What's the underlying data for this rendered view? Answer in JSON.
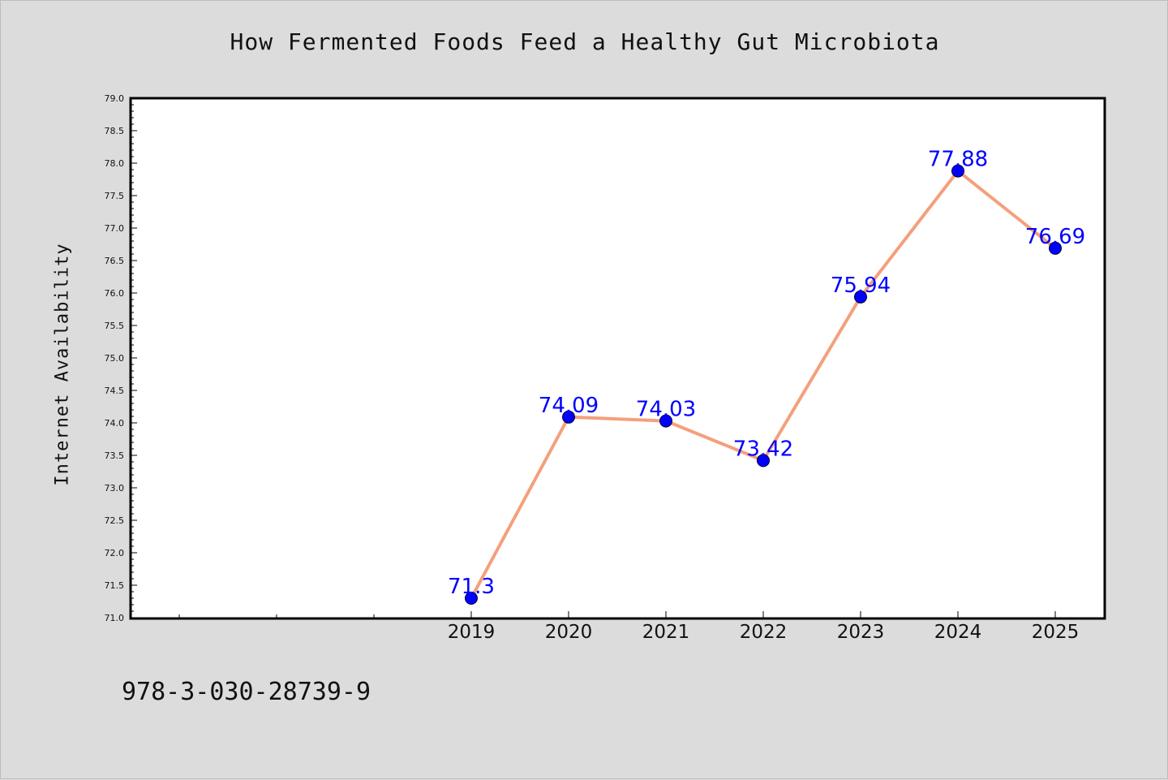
{
  "chart_data": {
    "type": "line",
    "title": "How Fermented Foods Feed a Healthy Gut Microbiota",
    "xlabel": "",
    "ylabel": "Internet Availability",
    "x": [
      2019,
      2020,
      2021,
      2022,
      2023,
      2024,
      2025
    ],
    "xlim": [
      2015.5,
      2025.5
    ],
    "ylim": [
      71.0,
      79.0
    ],
    "ytick_step": 0.5,
    "series": [
      {
        "values": [
          71.3,
          74.09,
          74.03,
          73.42,
          75.94,
          77.88,
          76.69
        ],
        "labels": [
          "71.3",
          "74.09",
          "74.03",
          "73.42",
          "75.94",
          "77.88",
          "76.69"
        ],
        "line_color": "#f4a07c",
        "marker_color": "#0000ff"
      }
    ],
    "grid": false,
    "legend": "none"
  },
  "footer": {
    "isbn": "978-3-030-28739-9"
  },
  "colors": {
    "background": "#dcdcdc",
    "plot_area": "#ffffff",
    "line": "#f4a07c",
    "marker": "#0000ff",
    "data_label": "#0000ff"
  }
}
